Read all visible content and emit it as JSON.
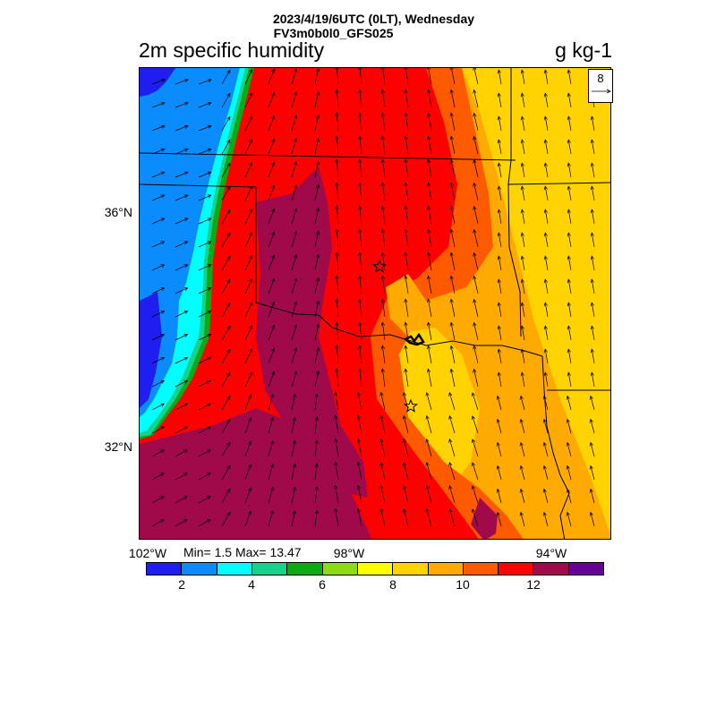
{
  "header": {
    "line1": "2023/4/19/6UTC (0LT), Wednesday",
    "line2": "FV3m0b0l0_GFS025",
    "variable": "2m specific humidity",
    "units": "g kg-1"
  },
  "axes": {
    "lat_labels": [
      "36°N",
      "32°N"
    ],
    "lon_labels": [
      "102°W",
      "98°W",
      "94°W"
    ]
  },
  "stats": {
    "text": "Min= 1.5 Max= 13.47"
  },
  "colorbar": {
    "colors": [
      "#1e1ef0",
      "#0a8cff",
      "#00ffff",
      "#14d28c",
      "#0aaa14",
      "#8cdc14",
      "#ffff00",
      "#ffd200",
      "#ffaa00",
      "#ff5a00",
      "#ff0000",
      "#a00a4b",
      "#640096"
    ],
    "labels": [
      "2",
      "4",
      "6",
      "8",
      "10",
      "12"
    ]
  },
  "reference_vector": {
    "label": "8"
  },
  "chart_data": {
    "type": "heatmap",
    "title": "2m specific humidity",
    "units": "g kg-1",
    "min": 1.5,
    "max": 13.47,
    "lat_range": [
      30.2,
      39.0
    ],
    "lon_range": [
      -102.0,
      -93.1
    ],
    "contour_levels": [
      1,
      2,
      3,
      4,
      5,
      6,
      7,
      8,
      9,
      10,
      11,
      12,
      13
    ],
    "markers": [
      "star",
      "star"
    ]
  }
}
